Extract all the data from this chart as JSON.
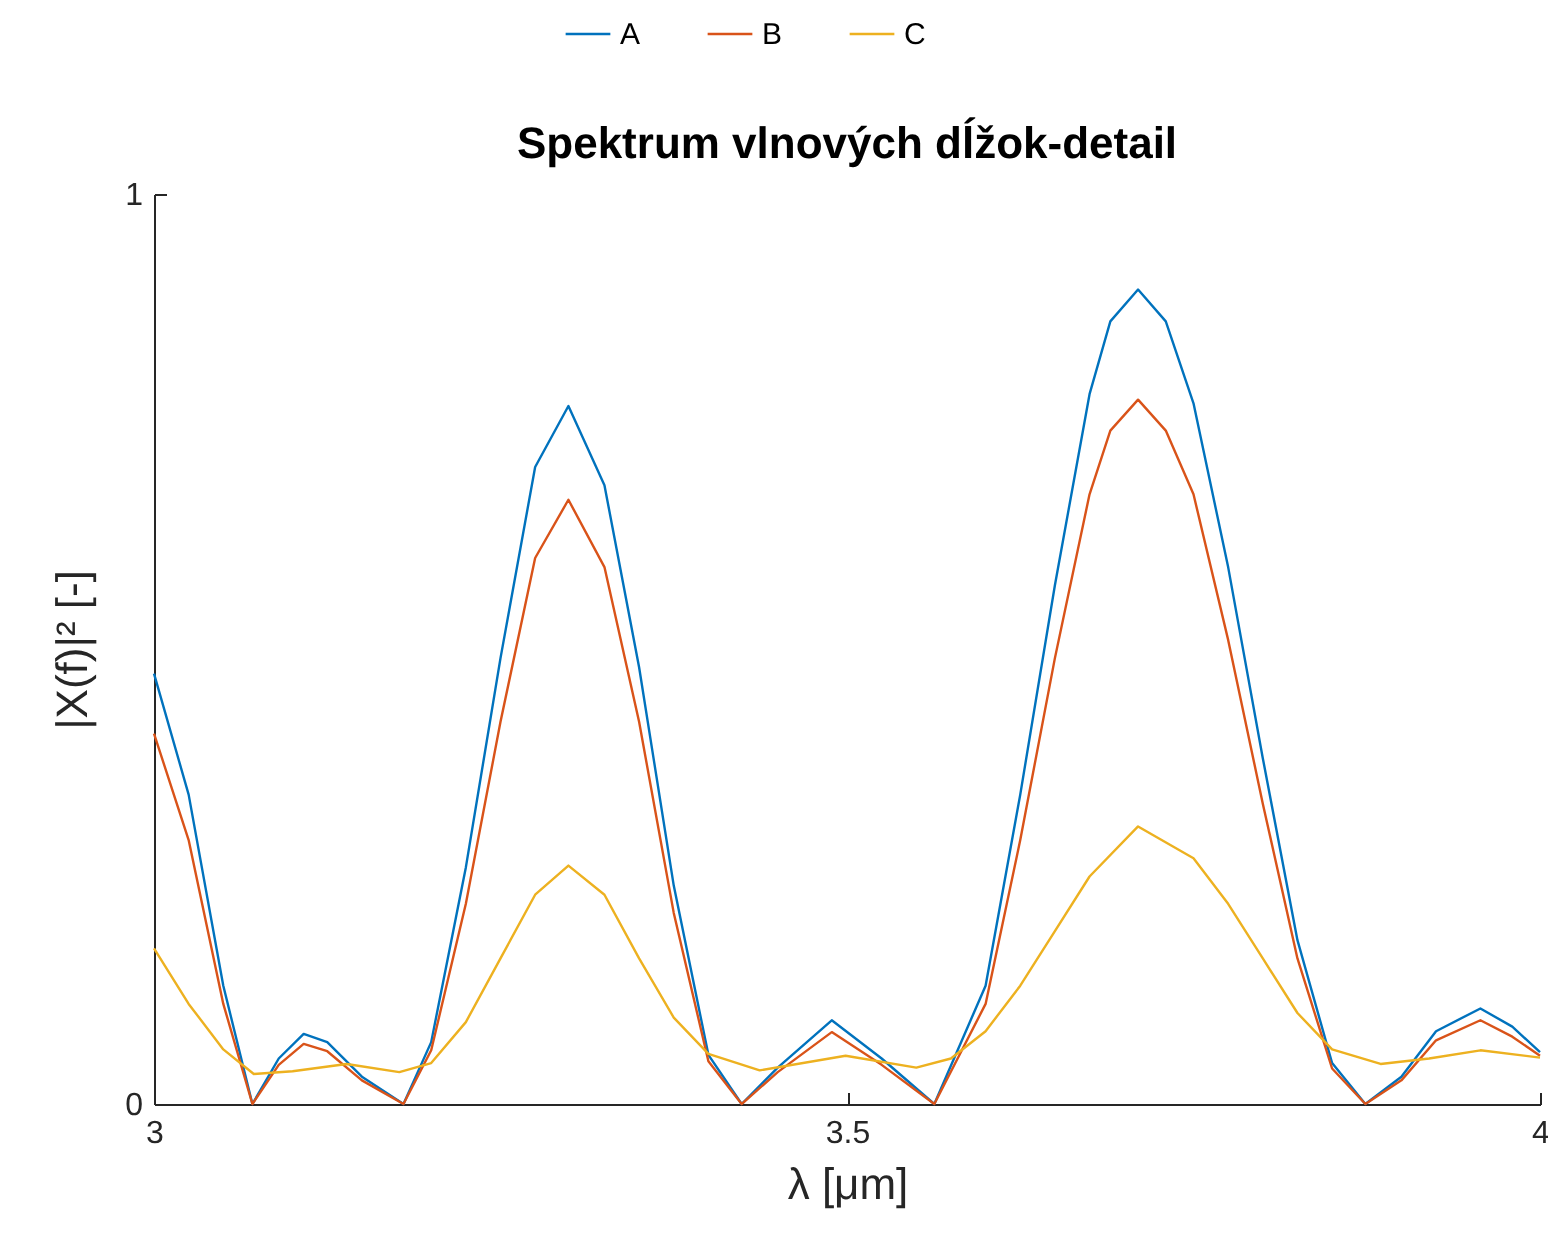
{
  "chart_data": {
    "type": "line",
    "title": "Spektrum vlnových dĺžok-detail",
    "xlabel": "λ [μm]",
    "ylabel": "|X(f)|² [-]",
    "xlim": [
      3,
      4
    ],
    "xticks": [
      3,
      3.5,
      4
    ],
    "ylim": [
      0,
      1
    ],
    "yticks": [
      0,
      1
    ],
    "legend": "top",
    "line_style": "solid",
    "series": [
      {
        "name": "A",
        "color": "#0072bd",
        "x": [
          3.0,
          3.025,
          3.05,
          3.071,
          3.09,
          3.108,
          3.125,
          3.15,
          3.18,
          3.2,
          3.225,
          3.25,
          3.275,
          3.299,
          3.325,
          3.35,
          3.375,
          3.4,
          3.424,
          3.45,
          3.489,
          3.525,
          3.563,
          3.6,
          3.625,
          3.65,
          3.675,
          3.69,
          3.71,
          3.73,
          3.75,
          3.775,
          3.8,
          3.825,
          3.85,
          3.874,
          3.9,
          3.925,
          3.957,
          3.98,
          4.0
        ],
        "values": [
          0.473,
          0.34,
          0.13,
          0.0,
          0.05,
          0.077,
          0.068,
          0.03,
          0.0,
          0.068,
          0.26,
          0.49,
          0.7,
          0.767,
          0.68,
          0.48,
          0.24,
          0.054,
          0.0,
          0.04,
          0.092,
          0.05,
          0.0,
          0.13,
          0.34,
          0.57,
          0.78,
          0.86,
          0.895,
          0.86,
          0.77,
          0.59,
          0.38,
          0.18,
          0.045,
          0.0,
          0.03,
          0.08,
          0.105,
          0.085,
          0.057
        ]
      },
      {
        "name": "B",
        "color": "#d95319",
        "x": [
          3.0,
          3.025,
          3.05,
          3.071,
          3.09,
          3.108,
          3.125,
          3.15,
          3.18,
          3.2,
          3.225,
          3.25,
          3.275,
          3.299,
          3.325,
          3.35,
          3.375,
          3.4,
          3.424,
          3.45,
          3.489,
          3.525,
          3.563,
          3.6,
          3.625,
          3.65,
          3.675,
          3.69,
          3.71,
          3.73,
          3.75,
          3.775,
          3.8,
          3.825,
          3.85,
          3.874,
          3.9,
          3.925,
          3.957,
          3.98,
          4.0
        ],
        "values": [
          0.407,
          0.29,
          0.11,
          0.0,
          0.043,
          0.066,
          0.058,
          0.026,
          0.0,
          0.059,
          0.22,
          0.42,
          0.6,
          0.664,
          0.59,
          0.42,
          0.21,
          0.047,
          0.0,
          0.035,
          0.079,
          0.043,
          0.0,
          0.11,
          0.29,
          0.49,
          0.67,
          0.74,
          0.774,
          0.74,
          0.67,
          0.51,
          0.33,
          0.16,
          0.039,
          0.0,
          0.026,
          0.07,
          0.092,
          0.074,
          0.053
        ]
      },
      {
        "name": "C",
        "color": "#edb120",
        "x": [
          3.0,
          3.025,
          3.05,
          3.072,
          3.1,
          3.139,
          3.177,
          3.2,
          3.225,
          3.25,
          3.275,
          3.299,
          3.325,
          3.35,
          3.375,
          3.4,
          3.437,
          3.499,
          3.55,
          3.575,
          3.6,
          3.625,
          3.65,
          3.675,
          3.71,
          3.75,
          3.775,
          3.8,
          3.825,
          3.85,
          3.885,
          3.92,
          3.957,
          4.0
        ],
        "values": [
          0.171,
          0.11,
          0.06,
          0.033,
          0.036,
          0.044,
          0.035,
          0.045,
          0.09,
          0.16,
          0.23,
          0.262,
          0.23,
          0.16,
          0.095,
          0.055,
          0.037,
          0.053,
          0.04,
          0.05,
          0.08,
          0.13,
          0.19,
          0.25,
          0.305,
          0.27,
          0.22,
          0.16,
          0.1,
          0.06,
          0.044,
          0.05,
          0.059,
          0.051
        ]
      }
    ]
  }
}
